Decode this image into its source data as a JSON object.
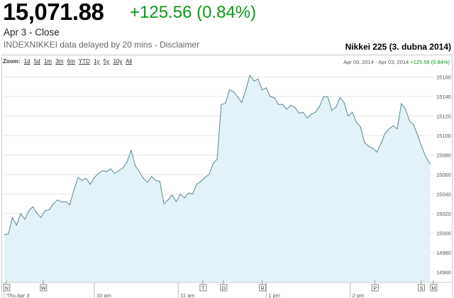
{
  "header": {
    "price": "15,071.88",
    "change": "+125.56 (0.84%)",
    "date": "Apr 3 - Close",
    "disclaimer": "INDEXNIKKEI data delayed by 20 mins - Disclaimer",
    "chart_title": "Nikkei 225 (3. dubna 2014)"
  },
  "toolbar": {
    "zoom_label": "Zoom:",
    "zoom_options": [
      "1d",
      "5d",
      "1m",
      "3m",
      "6m",
      "YTD",
      "1y",
      "5y",
      "10y",
      "All"
    ]
  },
  "range": {
    "from": "Apr 03, 2014",
    "sep": "-",
    "to": "Apr 03, 2014",
    "change": "+125.56 (0.84%)"
  },
  "colors": {
    "line": "#5a8a8a",
    "fill": "#e3f1f8",
    "grid": "#e6e6e6",
    "up": "#0a9a18"
  },
  "chart_data": {
    "type": "area",
    "title": "Nikkei 225 (3. dubna 2014)",
    "xlabel": "",
    "ylabel": "",
    "ylim": [
      14950,
      15170
    ],
    "yticks": [
      14960,
      14980,
      15000,
      15020,
      15040,
      15060,
      15080,
      15100,
      15120,
      15140,
      15160
    ],
    "xlim": [
      0,
      105
    ],
    "xtick_labels": [
      {
        "x": 0,
        "label": "Thu Apr 3"
      },
      {
        "x": 22,
        "label": "10 am"
      },
      {
        "x": 42.5,
        "label": "11 am"
      },
      {
        "x": 64,
        "label": "1 pm"
      },
      {
        "x": 84.5,
        "label": "2 pm"
      }
    ],
    "markers": [
      {
        "x": 0.5,
        "label": "N"
      },
      {
        "x": 9.5,
        "label": "W"
      },
      {
        "x": 48.5,
        "label": "T"
      },
      {
        "x": 53.5,
        "label": "O"
      },
      {
        "x": 63,
        "label": "R"
      },
      {
        "x": 90.5,
        "label": "P"
      },
      {
        "x": 101.8,
        "label": "S"
      },
      {
        "x": 104.8,
        "label": "M"
      }
    ],
    "grid": true,
    "series": [
      {
        "values": [
          [
            0,
            14998
          ],
          [
            1,
            14999
          ],
          [
            2,
            15016
          ],
          [
            3,
            15008
          ],
          [
            4,
            15020
          ],
          [
            5,
            15014
          ],
          [
            6,
            15023
          ],
          [
            7,
            15027
          ],
          [
            8,
            15020
          ],
          [
            9,
            15016
          ],
          [
            10,
            15023
          ],
          [
            11,
            15024
          ],
          [
            12,
            15030
          ],
          [
            13,
            15034
          ],
          [
            14,
            15032
          ],
          [
            15,
            15032
          ],
          [
            16,
            15029
          ],
          [
            17,
            15044
          ],
          [
            18,
            15057
          ],
          [
            19,
            15054
          ],
          [
            20,
            15056
          ],
          [
            21,
            15050
          ],
          [
            22,
            15057
          ],
          [
            23,
            15061
          ],
          [
            24,
            15064
          ],
          [
            25,
            15063
          ],
          [
            26,
            15066
          ],
          [
            27,
            15061
          ],
          [
            28,
            15064
          ],
          [
            29,
            15067
          ],
          [
            30,
            15073
          ],
          [
            31,
            15085
          ],
          [
            32,
            15069
          ],
          [
            33,
            15063
          ],
          [
            34,
            15056
          ],
          [
            35,
            15052
          ],
          [
            36,
            15058
          ],
          [
            37,
            15054
          ],
          [
            38,
            15053
          ],
          [
            39,
            15030
          ],
          [
            40,
            15034
          ],
          [
            41,
            15039
          ],
          [
            42,
            15032
          ],
          [
            43,
            15040
          ],
          [
            44,
            15036
          ],
          [
            45,
            15041
          ],
          [
            46,
            15040
          ],
          [
            47,
            15050
          ],
          [
            48,
            15053
          ],
          [
            49,
            15057
          ],
          [
            50,
            15060
          ],
          [
            51,
            15071
          ],
          [
            52,
            15076
          ],
          [
            53,
            15132
          ],
          [
            54,
            15133
          ],
          [
            55,
            15147
          ],
          [
            56,
            15145
          ],
          [
            57,
            15140
          ],
          [
            58,
            15134
          ],
          [
            59,
            15147
          ],
          [
            60,
            15162
          ],
          [
            61,
            15156
          ],
          [
            62,
            15158
          ],
          [
            63,
            15147
          ],
          [
            64,
            15149
          ],
          [
            65,
            15140
          ],
          [
            66,
            15139
          ],
          [
            67,
            15132
          ],
          [
            68,
            15132
          ],
          [
            69,
            15127
          ],
          [
            70,
            15131
          ],
          [
            71,
            15129
          ],
          [
            72,
            15123
          ],
          [
            73,
            15124
          ],
          [
            74,
            15118
          ],
          [
            75,
            15122
          ],
          [
            76,
            15124
          ],
          [
            77,
            15130
          ],
          [
            78,
            15140
          ],
          [
            79,
            15140
          ],
          [
            80,
            15126
          ],
          [
            81,
            15129
          ],
          [
            82,
            15139
          ],
          [
            83,
            15134
          ],
          [
            84,
            15120
          ],
          [
            85,
            15124
          ],
          [
            86,
            15114
          ],
          [
            87,
            15109
          ],
          [
            88,
            15093
          ],
          [
            89,
            15089
          ],
          [
            90,
            15087
          ],
          [
            91,
            15083
          ],
          [
            92,
            15092
          ],
          [
            93,
            15102
          ],
          [
            94,
            15107
          ],
          [
            95,
            15110
          ],
          [
            96,
            15107
          ],
          [
            97,
            15133
          ],
          [
            98,
            15127
          ],
          [
            99,
            15115
          ],
          [
            100,
            15111
          ],
          [
            101,
            15100
          ],
          [
            102,
            15088
          ],
          [
            103,
            15078
          ],
          [
            104,
            15071
          ]
        ]
      }
    ]
  }
}
